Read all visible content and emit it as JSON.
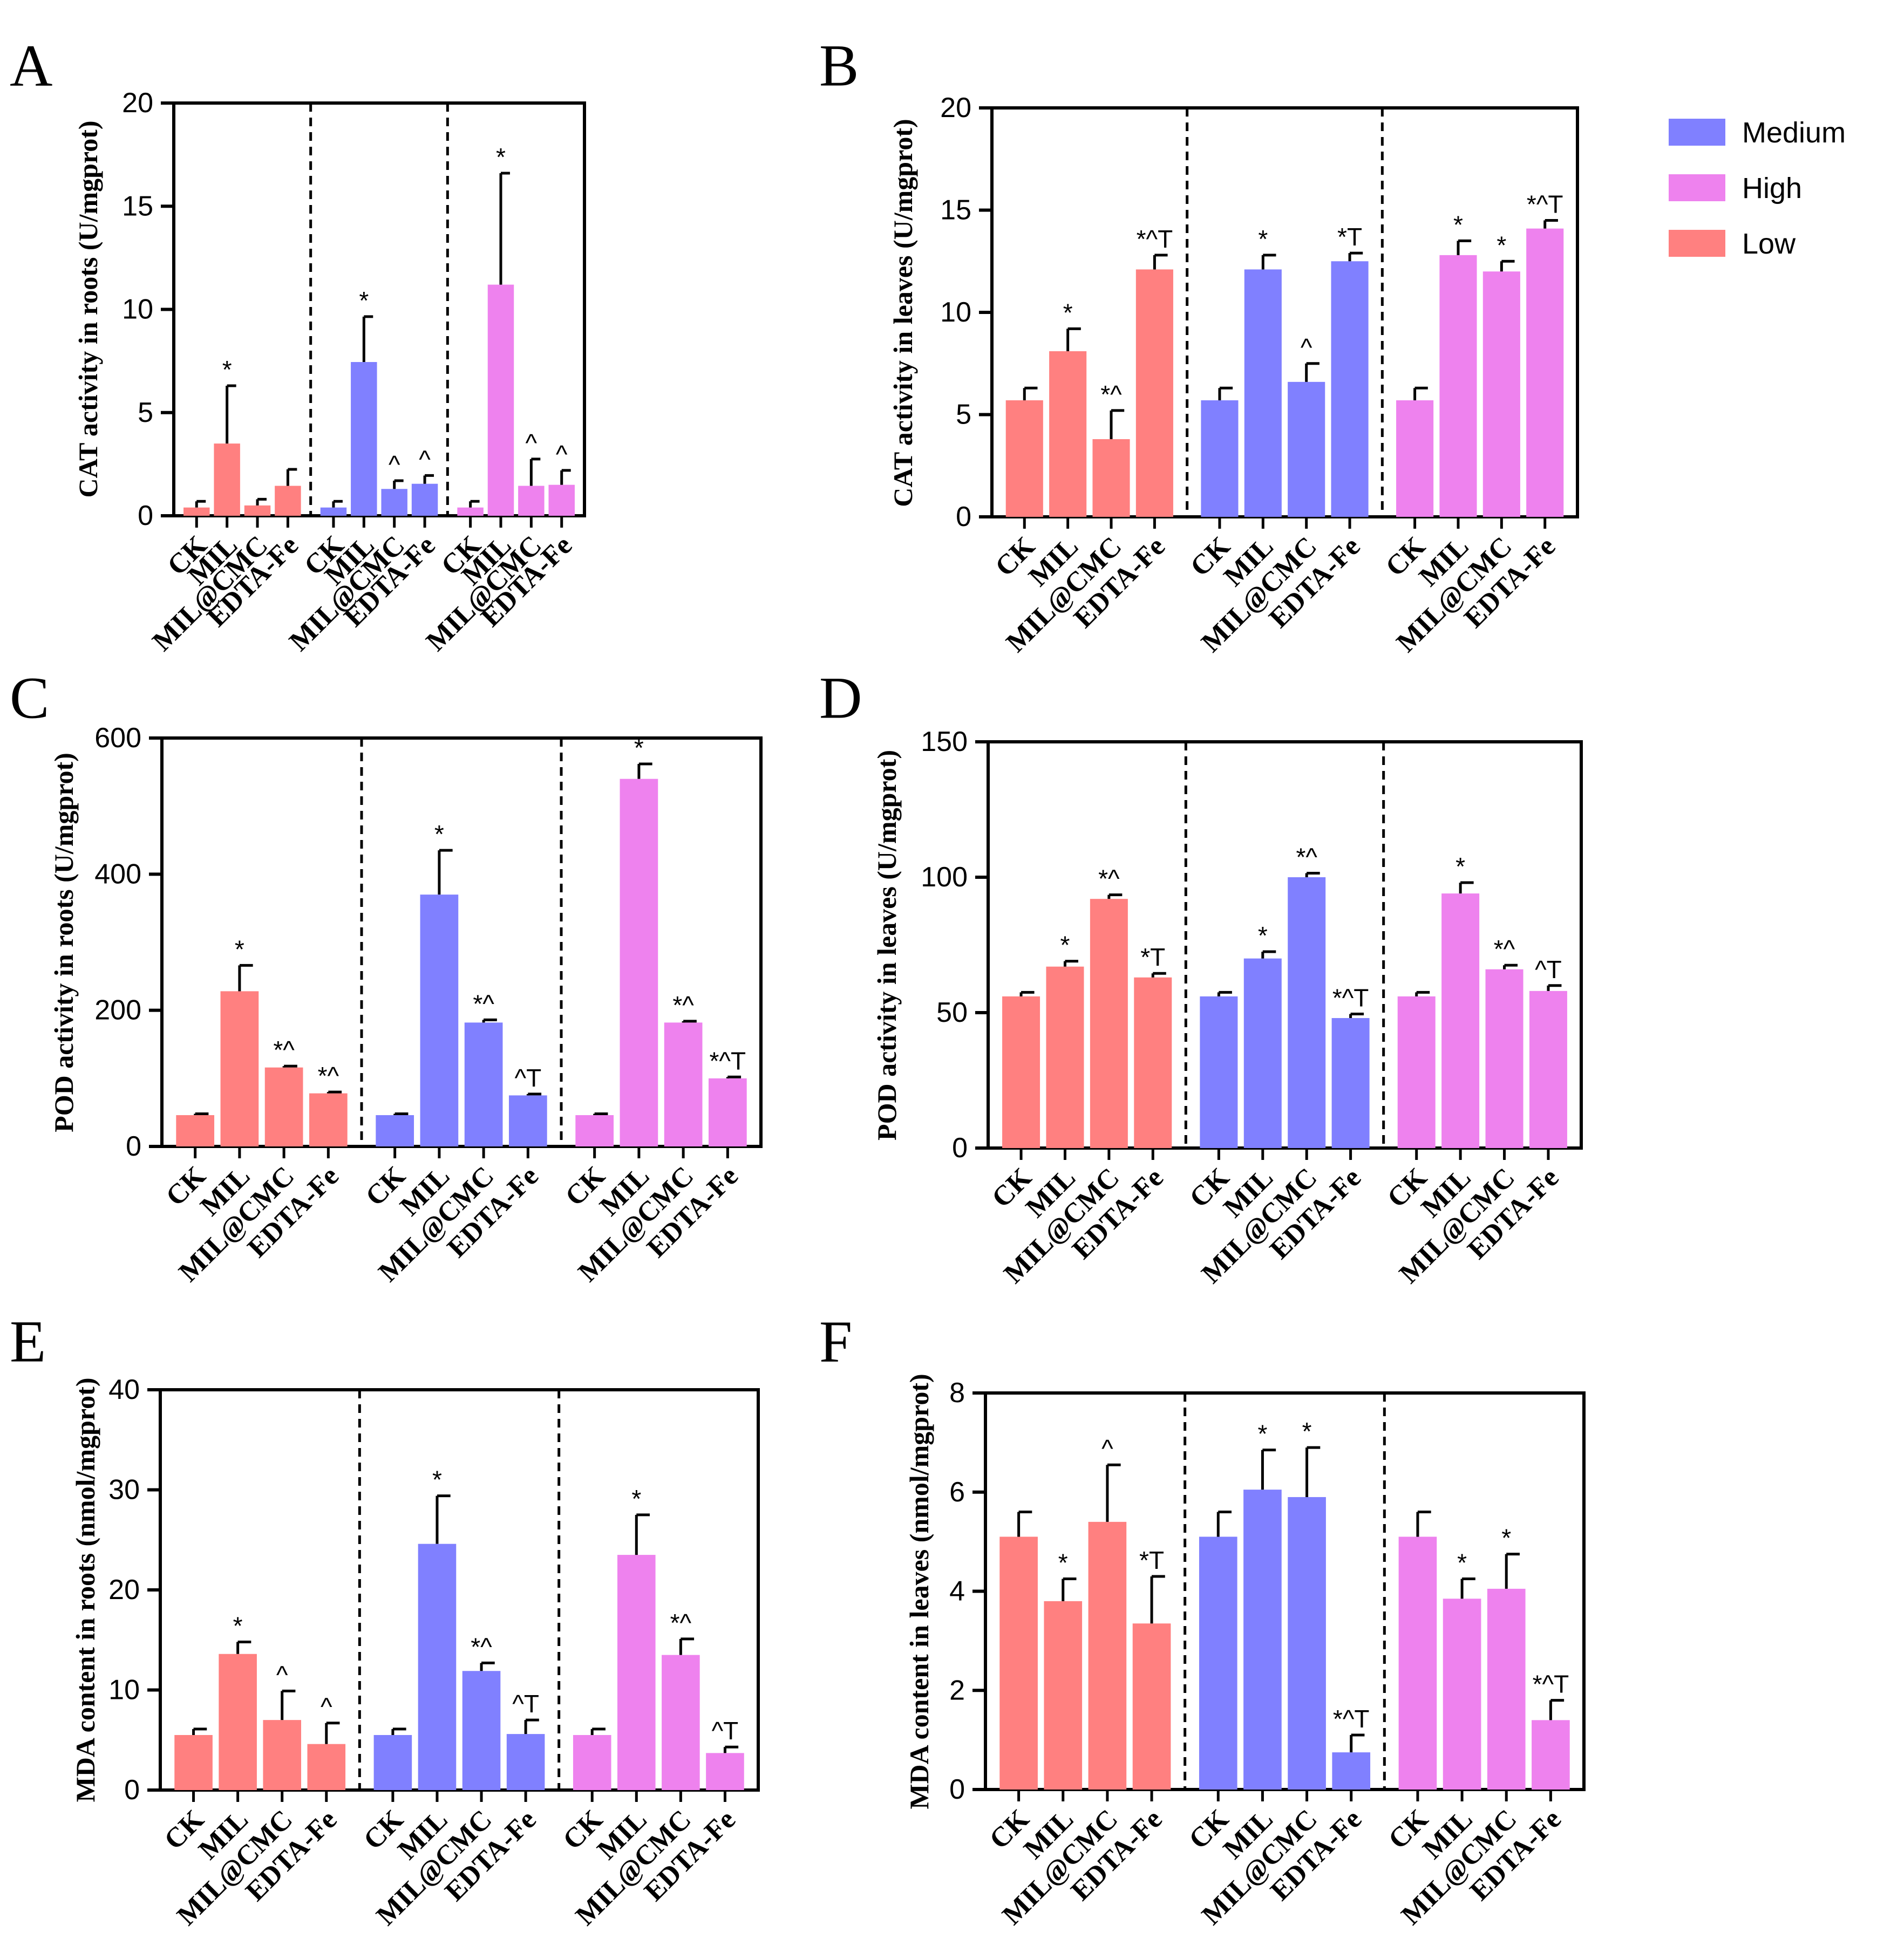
{
  "colors": {
    "Low": "#FF8080",
    "Medium": "#8080FF",
    "High": "#EE82EE"
  },
  "legend": {
    "items": [
      {
        "name": "Medium",
        "color": "#8080FF"
      },
      {
        "name": "High",
        "color": "#EE82EE"
      },
      {
        "name": "Low",
        "color": "#FF8080"
      }
    ]
  },
  "chart_data": [
    {
      "panel": "A",
      "type": "bar",
      "ylabel": "CAT activity in roots (U/mgprot)",
      "ylim": [
        0,
        20
      ],
      "yticks": [
        0,
        5,
        10,
        15,
        20
      ],
      "categories": [
        "CK",
        "MIL",
        "MIL@CMC",
        "EDTA-Fe"
      ],
      "groups": [
        {
          "name": "Low",
          "values": [
            0.4,
            3.5,
            0.5,
            1.45
          ],
          "errors": [
            0.3,
            2.8,
            0.3,
            0.8
          ],
          "labels": [
            "",
            "*",
            "",
            ""
          ]
        },
        {
          "name": "Medium",
          "values": [
            0.4,
            7.45,
            1.3,
            1.55
          ],
          "errors": [
            0.3,
            2.2,
            0.4,
            0.4
          ],
          "labels": [
            "",
            "*",
            "^",
            "^"
          ]
        },
        {
          "name": "High",
          "values": [
            0.4,
            11.2,
            1.45,
            1.5
          ],
          "errors": [
            0.3,
            5.4,
            1.3,
            0.7
          ],
          "labels": [
            "",
            "*",
            "^",
            "^"
          ]
        }
      ]
    },
    {
      "panel": "B",
      "type": "bar",
      "ylabel": "CAT activity in leaves (U/mgprot)",
      "ylim": [
        0,
        20
      ],
      "yticks": [
        0,
        5,
        10,
        15,
        20
      ],
      "categories": [
        "CK",
        "MIL",
        "MIL@CMC",
        "EDTA-Fe"
      ],
      "groups": [
        {
          "name": "Low",
          "values": [
            5.7,
            8.1,
            3.8,
            12.1
          ],
          "errors": [
            0.6,
            1.1,
            1.4,
            0.7
          ],
          "labels": [
            "",
            "*",
            "*^",
            "*^T"
          ]
        },
        {
          "name": "Medium",
          "values": [
            5.7,
            12.1,
            6.6,
            12.5
          ],
          "errors": [
            0.6,
            0.7,
            0.9,
            0.4
          ],
          "labels": [
            "",
            "*",
            "^",
            "*T"
          ]
        },
        {
          "name": "High",
          "values": [
            5.7,
            12.8,
            12.0,
            14.1
          ],
          "errors": [
            0.6,
            0.7,
            0.5,
            0.4
          ],
          "labels": [
            "",
            "*",
            "*",
            "*^T"
          ]
        }
      ]
    },
    {
      "panel": "C",
      "type": "bar",
      "ylabel": "POD activity in roots (U/mgprot)",
      "ylim": [
        0,
        600
      ],
      "yticks": [
        0,
        200,
        400,
        600
      ],
      "categories": [
        "CK",
        "MIL",
        "MIL@CMC",
        "EDTA-Fe"
      ],
      "groups": [
        {
          "name": "Low",
          "values": [
            46,
            228,
            116,
            78
          ],
          "errors": [
            2,
            38,
            2,
            2
          ],
          "labels": [
            "",
            "*",
            "*^",
            "*^"
          ]
        },
        {
          "name": "Medium",
          "values": [
            46,
            370,
            182,
            75
          ],
          "errors": [
            2,
            65,
            4,
            2
          ],
          "labels": [
            "",
            "*",
            "*^",
            "^T"
          ]
        },
        {
          "name": "High",
          "values": [
            46,
            540,
            182,
            100
          ],
          "errors": [
            2,
            22,
            2,
            2
          ],
          "labels": [
            "",
            "*",
            "*^",
            "*^T"
          ]
        }
      ]
    },
    {
      "panel": "D",
      "type": "bar",
      "ylabel": "POD activity in leaves (U/mgprot)",
      "ylim": [
        0,
        150
      ],
      "yticks": [
        0,
        50,
        100,
        150
      ],
      "categories": [
        "CK",
        "MIL",
        "MIL@CMC",
        "EDTA-Fe"
      ],
      "groups": [
        {
          "name": "Low",
          "values": [
            56,
            67,
            92,
            63
          ],
          "errors": [
            1.5,
            2,
            1.5,
            1.5
          ],
          "labels": [
            "",
            "*",
            "*^",
            "*T"
          ]
        },
        {
          "name": "Medium",
          "values": [
            56,
            70,
            100,
            48
          ],
          "errors": [
            1.5,
            2.5,
            1.5,
            1.5
          ],
          "labels": [
            "",
            "*",
            "*^",
            "*^T"
          ]
        },
        {
          "name": "High",
          "values": [
            56,
            94,
            66,
            58
          ],
          "errors": [
            1.5,
            4,
            1.5,
            2
          ],
          "labels": [
            "",
            "*",
            "*^",
            "^T"
          ]
        }
      ]
    },
    {
      "panel": "E",
      "type": "bar",
      "ylabel": "MDA content in roots (nmol/mgprot)",
      "ylim": [
        0,
        40
      ],
      "yticks": [
        0,
        10,
        20,
        30,
        40
      ],
      "categories": [
        "CK",
        "MIL",
        "MIL@CMC",
        "EDTA-Fe"
      ],
      "groups": [
        {
          "name": "Low",
          "values": [
            5.5,
            13.6,
            7.0,
            4.6
          ],
          "errors": [
            0.6,
            1.2,
            2.9,
            2.1
          ],
          "labels": [
            "",
            "*",
            "^",
            "^"
          ]
        },
        {
          "name": "Medium",
          "values": [
            5.5,
            24.6,
            11.9,
            5.6
          ],
          "errors": [
            0.6,
            4.8,
            0.8,
            1.4
          ],
          "labels": [
            "",
            "*",
            "*^",
            "^T"
          ]
        },
        {
          "name": "High",
          "values": [
            5.5,
            23.5,
            13.5,
            3.7
          ],
          "errors": [
            0.6,
            4.0,
            1.6,
            0.6
          ],
          "labels": [
            "",
            "*",
            "*^",
            "^T"
          ]
        }
      ]
    },
    {
      "panel": "F",
      "type": "bar",
      "ylabel": "MDA content in leaves (nmol/mgprot)",
      "ylim": [
        0,
        8
      ],
      "yticks": [
        0,
        2,
        4,
        6,
        8
      ],
      "categories": [
        "CK",
        "MIL",
        "MIL@CMC",
        "EDTA-Fe"
      ],
      "groups": [
        {
          "name": "Low",
          "values": [
            5.1,
            3.8,
            5.4,
            3.35
          ],
          "errors": [
            0.5,
            0.45,
            1.15,
            0.95
          ],
          "labels": [
            "",
            "*",
            "^",
            "*T"
          ]
        },
        {
          "name": "Medium",
          "values": [
            5.1,
            6.05,
            5.9,
            0.75
          ],
          "errors": [
            0.5,
            0.8,
            1.0,
            0.35
          ],
          "labels": [
            "",
            "*",
            "*",
            "*^T"
          ]
        },
        {
          "name": "High",
          "values": [
            5.1,
            3.85,
            4.05,
            1.4
          ],
          "errors": [
            0.5,
            0.4,
            0.7,
            0.4
          ],
          "labels": [
            "",
            "*",
            "*",
            "*^T"
          ]
        }
      ]
    }
  ]
}
